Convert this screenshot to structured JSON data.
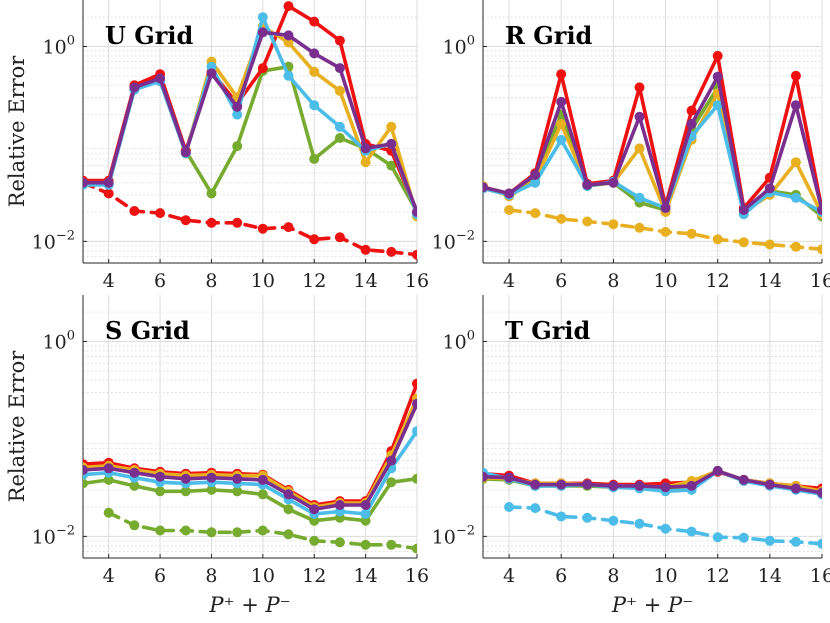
{
  "colors": {
    "red": "#ee1111",
    "orange": "#e8b020",
    "blue": "#4cbde9",
    "purple": "#7a2e8e",
    "green": "#76ab2f"
  },
  "common": {
    "ylabel": "Relative Error",
    "xlabel_html": "P⁺ + P⁻",
    "x_ticks": [
      "4",
      "6",
      "8",
      "10",
      "12",
      "14",
      "16"
    ],
    "y_tick_1": "10",
    "y_tick_1_exp": "0",
    "y_tick_2": "10",
    "y_tick_2_exp": "−2"
  },
  "chart_data": [
    {
      "type": "line",
      "title": "U Grid",
      "xlabel": "",
      "ylabel": "Relative Error",
      "yscale": "log",
      "xlim": [
        3,
        16
      ],
      "ylim": [
        0.006,
        3
      ],
      "x": [
        3,
        4,
        5,
        6,
        7,
        8,
        9,
        10,
        11,
        12,
        13,
        14,
        15,
        16
      ],
      "series": [
        {
          "name": "red",
          "color": "red",
          "style": "solid",
          "values": [
            0.042,
            0.042,
            0.4,
            0.52,
            0.085,
            0.55,
            0.26,
            0.6,
            2.6,
            1.8,
            1.15,
            0.1,
            0.085,
            0.02
          ]
        },
        {
          "name": "orange",
          "color": "orange",
          "style": "solid",
          "values": [
            0.04,
            0.04,
            0.36,
            0.45,
            0.08,
            0.7,
            0.3,
            1.6,
            1.1,
            0.55,
            0.35,
            0.065,
            0.15,
            0.018
          ]
        },
        {
          "name": "blue",
          "color": "blue",
          "style": "solid",
          "values": [
            0.038,
            0.038,
            0.36,
            0.44,
            0.08,
            0.62,
            0.2,
            2.0,
            0.5,
            0.25,
            0.15,
            0.085,
            0.1,
            0.019
          ]
        },
        {
          "name": "purple",
          "color": "purple",
          "style": "solid",
          "values": [
            0.04,
            0.04,
            0.38,
            0.47,
            0.082,
            0.53,
            0.24,
            1.4,
            1.3,
            0.85,
            0.6,
            0.09,
            0.1,
            0.02
          ]
        },
        {
          "name": "green",
          "color": "green",
          "style": "solid",
          "values": [
            null,
            null,
            null,
            null,
            0.085,
            0.031,
            0.095,
            0.56,
            0.62,
            0.07,
            0.115,
            0.09,
            0.06,
            0.02
          ]
        },
        {
          "name": "red-dashed",
          "color": "red",
          "style": "dashed",
          "values": [
            0.04,
            0.031,
            0.0205,
            0.0195,
            0.0165,
            0.0155,
            0.0155,
            0.0135,
            0.014,
            0.0105,
            0.011,
            0.0082,
            0.0078,
            0.0073
          ]
        }
      ]
    },
    {
      "type": "line",
      "title": "R Grid",
      "xlabel": "",
      "ylabel": "",
      "yscale": "log",
      "xlim": [
        3,
        16
      ],
      "ylim": [
        0.006,
        3
      ],
      "x": [
        3,
        4,
        5,
        6,
        7,
        8,
        9,
        10,
        11,
        12,
        13,
        14,
        15,
        16
      ],
      "series": [
        {
          "name": "red",
          "color": "red",
          "style": "solid",
          "values": [
            0.036,
            0.031,
            0.05,
            0.52,
            0.039,
            0.042,
            0.38,
            0.023,
            0.22,
            0.8,
            0.022,
            0.045,
            0.5,
            0.021
          ]
        },
        {
          "name": "orange",
          "color": "orange",
          "style": "solid",
          "values": [
            0.037,
            0.029,
            0.042,
            0.16,
            0.038,
            0.04,
            0.09,
            0.02,
            0.11,
            0.33,
            0.02,
            0.03,
            0.065,
            0.019
          ]
        },
        {
          "name": "blue",
          "color": "blue",
          "style": "solid",
          "values": [
            0.035,
            0.03,
            0.04,
            0.11,
            0.037,
            0.041,
            0.028,
            0.022,
            0.12,
            0.25,
            0.019,
            0.032,
            0.028,
            0.02
          ]
        },
        {
          "name": "purple",
          "color": "purple",
          "style": "solid",
          "values": [
            0.036,
            0.031,
            0.048,
            0.27,
            0.038,
            0.04,
            0.19,
            0.022,
            0.16,
            0.49,
            0.021,
            0.035,
            0.25,
            0.021
          ]
        },
        {
          "name": "green",
          "color": "green",
          "style": "solid",
          "values": [
            0.035,
            0.03,
            0.044,
            0.2,
            0.037,
            0.04,
            0.025,
            0.021,
            0.14,
            0.38,
            0.02,
            0.033,
            0.03,
            0.018
          ]
        },
        {
          "name": "orange-dashed",
          "color": "orange",
          "style": "dashed",
          "values": [
            null,
            0.021,
            0.0195,
            0.017,
            0.016,
            0.015,
            0.0138,
            0.0125,
            0.012,
            0.0105,
            0.0098,
            0.0093,
            0.0088,
            0.0083
          ]
        }
      ]
    },
    {
      "type": "line",
      "title": "S Grid",
      "xlabel": "P⁺ + P⁻",
      "ylabel": "Relative Error",
      "yscale": "log",
      "xlim": [
        3,
        16
      ],
      "ylim": [
        0.006,
        3
      ],
      "x": [
        3,
        4,
        5,
        6,
        7,
        8,
        9,
        10,
        11,
        12,
        13,
        14,
        15,
        16
      ],
      "series": [
        {
          "name": "red",
          "color": "red",
          "style": "solid",
          "values": [
            0.055,
            0.057,
            0.05,
            0.046,
            0.044,
            0.045,
            0.044,
            0.043,
            0.03,
            0.021,
            0.023,
            0.023,
            0.075,
            0.37
          ]
        },
        {
          "name": "orange",
          "color": "orange",
          "style": "solid",
          "values": [
            0.051,
            0.053,
            0.048,
            0.044,
            0.042,
            0.043,
            0.042,
            0.042,
            0.029,
            0.02,
            0.022,
            0.022,
            0.068,
            0.26
          ]
        },
        {
          "name": "blue",
          "color": "blue",
          "style": "solid",
          "values": [
            0.043,
            0.045,
            0.04,
            0.036,
            0.035,
            0.036,
            0.035,
            0.034,
            0.024,
            0.017,
            0.018,
            0.017,
            0.05,
            0.12
          ]
        },
        {
          "name": "purple",
          "color": "purple",
          "style": "solid",
          "values": [
            0.048,
            0.05,
            0.045,
            0.041,
            0.039,
            0.04,
            0.039,
            0.038,
            0.027,
            0.019,
            0.021,
            0.021,
            0.06,
            0.23
          ]
        },
        {
          "name": "green",
          "color": "green",
          "style": "solid",
          "values": [
            0.035,
            0.038,
            0.033,
            0.029,
            0.029,
            0.03,
            0.029,
            0.027,
            0.019,
            0.0145,
            0.0155,
            0.0145,
            0.036,
            0.039
          ]
        },
        {
          "name": "green-dashed",
          "color": "green",
          "style": "dashed",
          "values": [
            null,
            0.0175,
            0.013,
            0.0115,
            0.0115,
            0.011,
            0.011,
            0.0115,
            0.0105,
            0.009,
            0.0087,
            0.0082,
            0.0082,
            0.0075
          ]
        }
      ]
    },
    {
      "type": "line",
      "title": "T Grid",
      "xlabel": "P⁺ + P⁻",
      "ylabel": "",
      "yscale": "log",
      "xlim": [
        3,
        16
      ],
      "ylim": [
        0.006,
        3
      ],
      "x": [
        3,
        4,
        5,
        6,
        7,
        8,
        9,
        10,
        11,
        12,
        13,
        14,
        15,
        16
      ],
      "series": [
        {
          "name": "red",
          "color": "red",
          "style": "solid",
          "values": [
            0.044,
            0.042,
            0.035,
            0.035,
            0.035,
            0.034,
            0.034,
            0.035,
            0.036,
            0.046,
            0.038,
            0.035,
            0.033,
            0.031
          ]
        },
        {
          "name": "orange",
          "color": "orange",
          "style": "solid",
          "values": [
            0.04,
            0.039,
            0.035,
            0.035,
            0.034,
            0.033,
            0.033,
            0.032,
            0.037,
            0.047,
            0.038,
            0.035,
            0.033,
            0.029
          ]
        },
        {
          "name": "blue",
          "color": "blue",
          "style": "solid",
          "values": [
            0.045,
            0.039,
            0.033,
            0.033,
            0.034,
            0.032,
            0.031,
            0.029,
            0.03,
            0.047,
            0.037,
            0.033,
            0.03,
            0.027
          ]
        },
        {
          "name": "purple",
          "color": "purple",
          "style": "solid",
          "values": [
            0.041,
            0.04,
            0.034,
            0.034,
            0.034,
            0.033,
            0.033,
            0.032,
            0.033,
            0.047,
            0.038,
            0.034,
            0.031,
            0.028
          ]
        },
        {
          "name": "green",
          "color": "green",
          "style": "solid",
          "values": [
            0.039,
            0.038,
            0.033,
            0.033,
            0.033,
            0.032,
            0.032,
            0.031,
            0.033,
            0.047,
            0.037,
            0.034,
            0.031,
            0.028
          ]
        },
        {
          "name": "blue-dashed",
          "color": "blue",
          "style": "dashed",
          "values": [
            null,
            0.02,
            0.0195,
            0.016,
            0.0155,
            0.0145,
            0.0135,
            0.012,
            0.0112,
            0.0098,
            0.0097,
            0.009,
            0.0088,
            0.0084
          ]
        }
      ]
    }
  ]
}
